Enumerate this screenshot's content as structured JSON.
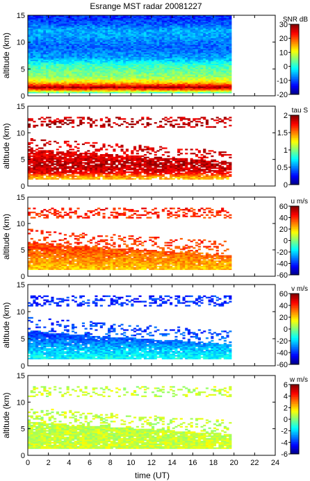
{
  "chart_data": {
    "type": "heatmap",
    "title": "Esrange MST radar 20081227",
    "xlabel": "time (UT)",
    "xlim": [
      0,
      24
    ],
    "x_ticks": [
      "0",
      "2",
      "4",
      "6",
      "8",
      "10",
      "12",
      "14",
      "16",
      "18",
      "20",
      "22",
      "24"
    ],
    "data_end_time": 19.7,
    "panels": [
      {
        "ylabel": "altitude (km)",
        "ylim": [
          0,
          15
        ],
        "y_ticks": [
          "0",
          "5",
          "10",
          "15"
        ],
        "colorbar_label": "SNR dB",
        "clim": [
          -20,
          30
        ],
        "colorbar_ticks": [
          "-20",
          "-10",
          "0",
          "10",
          "20",
          "30"
        ],
        "profile": [
          {
            "alt": 0.5,
            "value": 3
          },
          {
            "alt": 1.0,
            "value": 18
          },
          {
            "alt": 1.5,
            "value": 28
          },
          {
            "alt": 2.5,
            "value": 12
          },
          {
            "alt": 3.5,
            "value": 6
          },
          {
            "alt": 4.5,
            "value": 4
          },
          {
            "alt": 5.5,
            "value": 2
          },
          {
            "alt": 7,
            "value": -6
          },
          {
            "alt": 9,
            "value": -9
          },
          {
            "alt": 11,
            "value": -6
          },
          {
            "alt": 12,
            "value": -5
          },
          {
            "alt": 13.5,
            "value": -10
          },
          {
            "alt": 15,
            "value": -12
          }
        ]
      },
      {
        "ylabel": "altitude (km)",
        "ylim": [
          0,
          15
        ],
        "y_ticks": [
          "0",
          "5",
          "10",
          "15"
        ],
        "colorbar_label": "tau S",
        "clim": [
          0,
          2
        ],
        "colorbar_ticks": [
          "0",
          "0.5",
          "1",
          "1.5",
          "2"
        ],
        "profile": [
          {
            "alt": 1.5,
            "value": 1.4
          },
          {
            "alt": 2.5,
            "value": 1.8
          },
          {
            "alt": 4,
            "value": 1.9
          },
          {
            "alt": 5.5,
            "value": 1.8
          },
          {
            "alt": 11.5,
            "value": 1.9
          },
          {
            "alt": 12.5,
            "value": 1.85
          }
        ]
      },
      {
        "ylabel": "altitude (km)",
        "ylim": [
          0,
          15
        ],
        "y_ticks": [
          "0",
          "5",
          "10",
          "15"
        ],
        "colorbar_label": "u m/s",
        "clim": [
          -60,
          60
        ],
        "colorbar_ticks": [
          "-60",
          "-40",
          "-20",
          "0",
          "20",
          "40",
          "60"
        ],
        "profile": [
          {
            "alt": 1.5,
            "value": 22
          },
          {
            "alt": 3,
            "value": 28
          },
          {
            "alt": 5,
            "value": 36
          },
          {
            "alt": 7,
            "value": 40
          },
          {
            "alt": 11,
            "value": 40
          },
          {
            "alt": 12.5,
            "value": 42
          }
        ]
      },
      {
        "ylabel": "altitude (km)",
        "ylim": [
          0,
          15
        ],
        "y_ticks": [
          "0",
          "5",
          "10",
          "15"
        ],
        "colorbar_label": "v m/s",
        "clim": [
          -60,
          60
        ],
        "colorbar_ticks": [
          "-60",
          "-40",
          "-20",
          "0",
          "20",
          "40",
          "60"
        ],
        "profile": [
          {
            "alt": 1.5,
            "value": -15
          },
          {
            "alt": 3,
            "value": -22
          },
          {
            "alt": 5,
            "value": -35
          },
          {
            "alt": 7,
            "value": -38
          },
          {
            "alt": 11,
            "value": -40
          },
          {
            "alt": 12.5,
            "value": -40
          }
        ]
      },
      {
        "ylabel": "altitude (km)",
        "ylim": [
          0,
          15
        ],
        "y_ticks": [
          "0",
          "5",
          "10",
          "15"
        ],
        "colorbar_label": "w m/s",
        "clim": [
          -6,
          6
        ],
        "colorbar_ticks": [
          "-6",
          "-4",
          "-2",
          "0",
          "2",
          "4",
          "6"
        ],
        "profile": [
          {
            "alt": 1.5,
            "value": 1.0
          },
          {
            "alt": 3,
            "value": 0.8
          },
          {
            "alt": 5,
            "value": 0.8
          },
          {
            "alt": 7,
            "value": 0.8
          },
          {
            "alt": 12,
            "value": 0.8
          }
        ]
      }
    ]
  }
}
